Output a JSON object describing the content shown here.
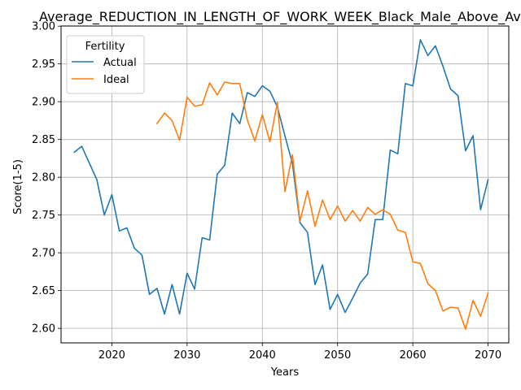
{
  "chart_data": {
    "type": "line",
    "title": "Average_REDUCTION_IN_LENGTH_OF_WORK_WEEK_Black_Male_Above_Avera",
    "xlabel": "Years",
    "ylabel": "Score(1-5)",
    "xlim": [
      2013.25,
      2072.75
    ],
    "ylim": [
      2.5808,
      3.0002
    ],
    "xticks": [
      2020,
      2030,
      2040,
      2050,
      2060,
      2070
    ],
    "yticks": [
      2.6,
      2.65,
      2.7,
      2.75,
      2.8,
      2.85,
      2.9,
      2.95,
      3.0
    ],
    "ytick_labels": [
      "2.60",
      "2.65",
      "2.70",
      "2.75",
      "2.80",
      "2.85",
      "2.90",
      "2.95",
      "3.00"
    ],
    "grid": true,
    "legend": {
      "title": "Fertility",
      "placement": "top-left"
    },
    "series": [
      {
        "name": "Actual",
        "color": "#1f77b4",
        "x": [
          2015,
          2016,
          2017,
          2018,
          2019,
          2020,
          2021,
          2022,
          2023,
          2024,
          2025,
          2026,
          2027,
          2028,
          2029,
          2030,
          2031,
          2032,
          2033,
          2034,
          2035,
          2036,
          2037,
          2038,
          2039,
          2040,
          2041,
          2042,
          2043,
          2044,
          2045,
          2046,
          2047,
          2048,
          2049,
          2050,
          2051,
          2052,
          2053,
          2054,
          2055,
          2056,
          2057,
          2058,
          2059,
          2060,
          2061,
          2062,
          2063,
          2064,
          2065,
          2066,
          2067,
          2068,
          2069,
          2070
        ],
        "y": [
          2.833,
          2.841,
          2.819,
          2.797,
          2.75,
          2.777,
          2.729,
          2.733,
          2.706,
          2.697,
          2.645,
          2.653,
          2.619,
          2.658,
          2.619,
          2.673,
          2.652,
          2.72,
          2.717,
          2.804,
          2.816,
          2.885,
          2.871,
          2.912,
          2.907,
          2.921,
          2.914,
          2.893,
          2.855,
          2.818,
          2.74,
          2.727,
          2.658,
          2.684,
          2.625,
          2.645,
          2.621,
          2.64,
          2.66,
          2.672,
          2.744,
          2.744,
          2.836,
          2.831,
          2.924,
          2.921,
          2.982,
          2.961,
          2.974,
          2.947,
          2.917,
          2.908,
          2.835,
          2.855,
          2.757,
          2.797
        ]
      },
      {
        "name": "Ideal",
        "color": "#ff7f0e",
        "x": [
          2026,
          2027,
          2028,
          2029,
          2030,
          2031,
          2032,
          2033,
          2034,
          2035,
          2036,
          2037,
          2038,
          2039,
          2040,
          2041,
          2042,
          2043,
          2044,
          2045,
          2046,
          2047,
          2048,
          2049,
          2050,
          2051,
          2052,
          2053,
          2054,
          2055,
          2056,
          2057,
          2058,
          2059,
          2060,
          2061,
          2062,
          2063,
          2064,
          2065,
          2066,
          2067,
          2068,
          2069,
          2070
        ],
        "y": [
          2.871,
          2.885,
          2.875,
          2.849,
          2.906,
          2.894,
          2.896,
          2.925,
          2.909,
          2.926,
          2.924,
          2.924,
          2.876,
          2.848,
          2.883,
          2.847,
          2.899,
          2.781,
          2.83,
          2.742,
          2.782,
          2.735,
          2.77,
          2.744,
          2.762,
          2.742,
          2.756,
          2.742,
          2.76,
          2.751,
          2.757,
          2.751,
          2.73,
          2.727,
          2.688,
          2.686,
          2.659,
          2.65,
          2.623,
          2.628,
          2.627,
          2.599,
          2.637,
          2.616,
          2.647
        ]
      }
    ]
  }
}
